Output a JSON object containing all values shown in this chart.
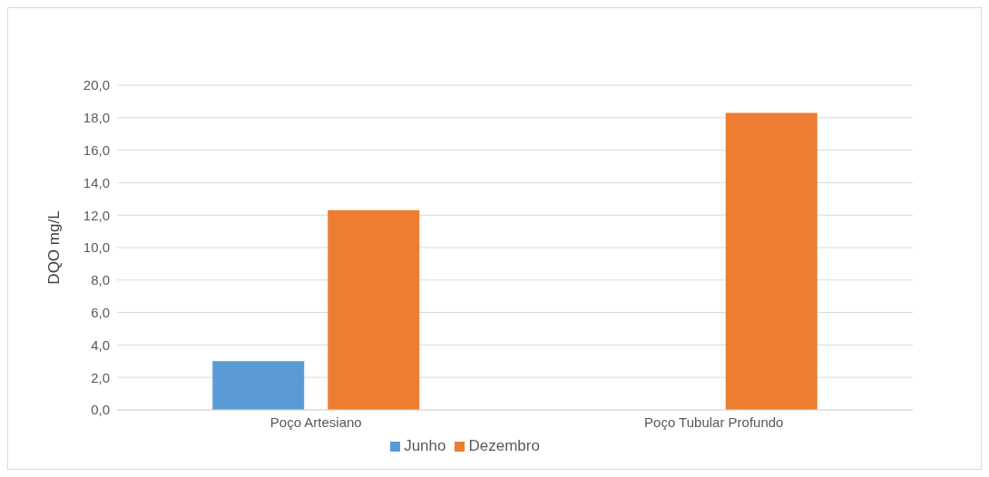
{
  "chart_data": {
    "type": "bar",
    "ylabel": "DQO mg/L",
    "categories": [
      "Poço Artesiano",
      "Poço Tubular Profundo"
    ],
    "series": [
      {
        "name": "Junho",
        "color": "#5b9bd5",
        "values": [
          3.0,
          null
        ]
      },
      {
        "name": "Dezembro",
        "color": "#ed7d31",
        "values": [
          12.3,
          18.3
        ]
      }
    ],
    "ylim": [
      0,
      20
    ],
    "yticks": [
      {
        "value": 0,
        "label": "0,0"
      },
      {
        "value": 2,
        "label": "2,0"
      },
      {
        "value": 4,
        "label": "4,0"
      },
      {
        "value": 6,
        "label": "6,0"
      },
      {
        "value": 8,
        "label": "8,0"
      },
      {
        "value": 10,
        "label": "10,0"
      },
      {
        "value": 12,
        "label": "12,0"
      },
      {
        "value": 14,
        "label": "14,0"
      },
      {
        "value": 16,
        "label": "16,0"
      },
      {
        "value": 18,
        "label": "18,0"
      },
      {
        "value": 20,
        "label": "20,0"
      }
    ],
    "grid": "y",
    "legend": "bottom"
  }
}
